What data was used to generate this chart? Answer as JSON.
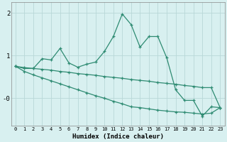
{
  "xlabel": "Humidex (Indice chaleur)",
  "x_values": [
    0,
    1,
    2,
    3,
    4,
    5,
    6,
    7,
    8,
    9,
    10,
    11,
    12,
    13,
    14,
    15,
    16,
    17,
    18,
    19,
    20,
    21,
    22,
    23
  ],
  "line_main": [
    0.75,
    0.7,
    0.7,
    0.93,
    0.9,
    1.17,
    0.83,
    0.73,
    0.8,
    0.85,
    1.1,
    1.45,
    1.98,
    1.73,
    1.2,
    1.45,
    1.45,
    0.95,
    0.2,
    -0.05,
    -0.05,
    -0.42,
    -0.2,
    -0.22
  ],
  "line_upper": [
    0.75,
    0.72,
    0.7,
    0.68,
    0.66,
    0.63,
    0.61,
    0.58,
    0.56,
    0.54,
    0.51,
    0.49,
    0.47,
    0.44,
    0.42,
    0.4,
    0.37,
    0.35,
    0.33,
    0.3,
    0.28,
    0.25,
    0.25,
    -0.22
  ],
  "line_lower": [
    0.75,
    0.63,
    0.55,
    0.48,
    0.41,
    0.34,
    0.27,
    0.2,
    0.13,
    0.06,
    0.0,
    -0.07,
    -0.13,
    -0.2,
    -0.22,
    -0.25,
    -0.28,
    -0.3,
    -0.32,
    -0.33,
    -0.35,
    -0.37,
    -0.35,
    -0.22
  ],
  "line_color": "#2e8b72",
  "bg_color": "#d8f0f0",
  "grid_color": "#b8d8d8",
  "ylim": [
    -0.65,
    2.25
  ],
  "xlim": [
    -0.5,
    23.5
  ]
}
